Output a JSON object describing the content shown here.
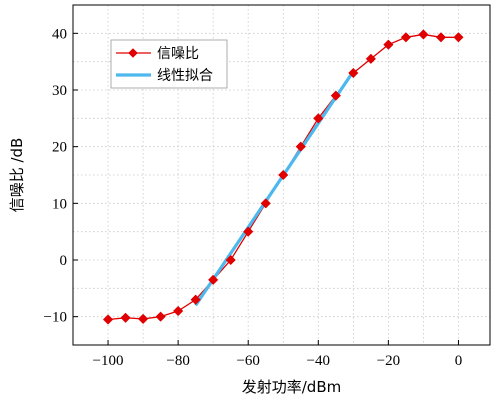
{
  "chart_data": {
    "type": "line",
    "xlabel": "发射功率/dBm",
    "ylabel": "信噪比 /dB",
    "xlim": [
      -110,
      9
    ],
    "ylim": [
      -15,
      45
    ],
    "x_ticks": [
      -100,
      -80,
      -60,
      -40,
      -20,
      0
    ],
    "y_ticks": [
      -10,
      0,
      10,
      20,
      30,
      40
    ],
    "x_tick_labels": [
      "−100",
      "−80",
      "−60",
      "−40",
      "−20",
      "0"
    ],
    "y_tick_labels": [
      "−10",
      "0",
      "10",
      "20",
      "30",
      "40"
    ],
    "grid": true,
    "legend_position": "top-left",
    "series": [
      {
        "name": "信噪比",
        "color": "#e00000",
        "marker": "diamond",
        "x": [
          -100,
          -95,
          -90,
          -85,
          -80,
          -75,
          -70,
          -65,
          -60,
          -55,
          -50,
          -45,
          -40,
          -35,
          -30,
          -25,
          -20,
          -15,
          -10,
          -5,
          0
        ],
        "y": [
          -10.5,
          -10.2,
          -10.4,
          -10.0,
          -9.0,
          -7.0,
          -3.5,
          0.0,
          5.0,
          10.0,
          15.0,
          20.0,
          25.0,
          29.0,
          33.0,
          35.5,
          38.0,
          39.3,
          39.8,
          39.3,
          39.3
        ]
      },
      {
        "name": "线性拟合",
        "color": "#4db8ee",
        "marker": "none",
        "x": [
          -75,
          -30
        ],
        "y": [
          -8.0,
          33.3
        ]
      }
    ]
  }
}
